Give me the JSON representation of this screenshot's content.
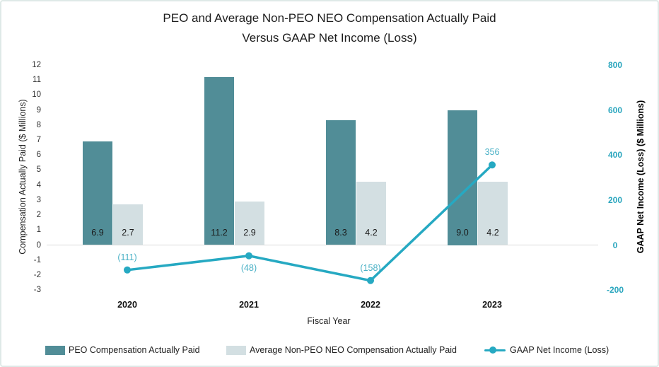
{
  "title": {
    "line1": "PEO and Average Non-PEO NEO Compensation Actually Paid",
    "line2": "Versus GAAP Net Income (Loss)"
  },
  "chart_data": {
    "type": "combo-bar-line",
    "categories": [
      "2020",
      "2021",
      "2022",
      "2023"
    ],
    "x_axis_title": "Fiscal Year",
    "left_axis": {
      "title": "Compensation Actually Paid ($ Millions)",
      "min": -3,
      "max": 12,
      "tick_step": 1,
      "ticks": [
        12,
        11,
        10,
        9,
        8,
        7,
        6,
        5,
        4,
        3,
        2,
        1,
        0,
        -1,
        -2,
        -3
      ]
    },
    "right_axis": {
      "title": "GAAP Net Income (Loss) ($ Millions)",
      "min": -200,
      "max": 800,
      "tick_step": 200,
      "ticks": [
        800,
        600,
        400,
        200,
        0,
        -200
      ]
    },
    "series": [
      {
        "name": "PEO Compensation Actually Paid",
        "type": "bar",
        "axis": "left",
        "color": "#518d97",
        "values": [
          6.9,
          11.2,
          8.3,
          9.0
        ],
        "labels": [
          "6.9",
          "11.2",
          "8.3",
          "9.0"
        ]
      },
      {
        "name": "Average Non-PEO NEO Compensation Actually Paid",
        "type": "bar",
        "axis": "left",
        "color": "#d3dfe2",
        "values": [
          2.7,
          2.9,
          4.2,
          4.2
        ],
        "labels": [
          "2.7",
          "2.9",
          "4.2",
          "4.2"
        ]
      },
      {
        "name": "GAAP Net Income (Loss)",
        "type": "line",
        "axis": "right",
        "color": "#26a9c2",
        "values": [
          -111,
          -48,
          -158,
          356
        ],
        "labels": [
          "(111)",
          "(48)",
          "(158)",
          "356"
        ],
        "label_positions": [
          "above",
          "below",
          "above",
          "above"
        ]
      }
    ],
    "gridlines": false,
    "legend_position": "bottom"
  },
  "colors": {
    "bar_peo": "#518d97",
    "bar_non_peo": "#d3dfe2",
    "line_gaap": "#26a9c2",
    "line_label_text": "#4ab1c6",
    "right_axis_text": "#2aa6be",
    "zero_line": "#d9d9d9",
    "title_text": "#1c1c1c",
    "border": "#dfe9e7"
  }
}
